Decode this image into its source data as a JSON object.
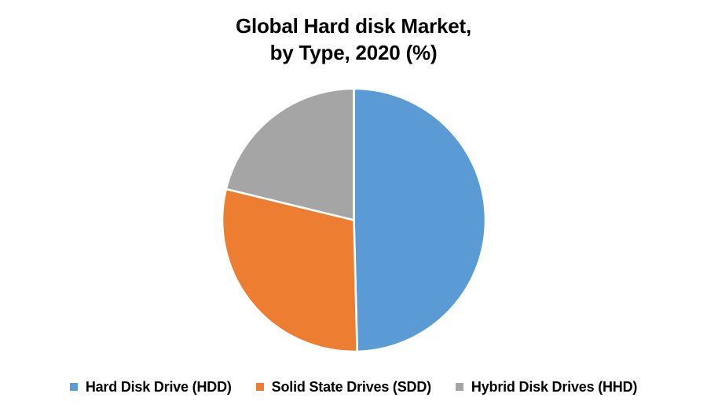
{
  "page": {
    "background_color": "#FFFFFF",
    "text_color": "#000000"
  },
  "chart_data": {
    "type": "pie",
    "title": "Global Hard disk Market, by Type, 2020 (%)",
    "title_lines": [
      "Global Hard disk Market,",
      "by Type, 2020 (%)"
    ],
    "categories": [
      "Hard Disk Drive (HDD)",
      "Solid State Drives (SDD)",
      "Hybrid Disk Drives (HHD)"
    ],
    "values": [
      49.6,
      29.2,
      21.2
    ],
    "unit": "%",
    "colors": [
      "#5B9BD5",
      "#ED7D31",
      "#A5A5A5"
    ],
    "slice_border_color": "#FFFFFF",
    "slice_border_width": 2.6,
    "start_angle_deg": 0,
    "direction": "clockwise",
    "legend_position": "bottom",
    "legend_marker": "square",
    "grid": "off",
    "data_labels": "none"
  }
}
